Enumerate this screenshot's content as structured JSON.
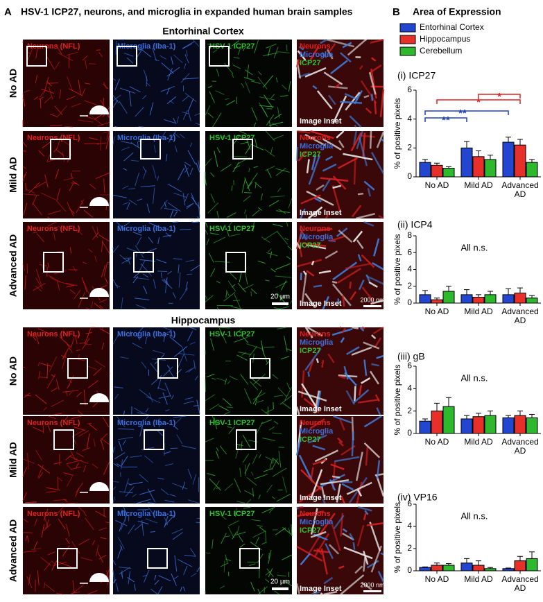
{
  "panel_a": {
    "label": "A",
    "title": "HSV-1 ICP27, neurons, and microglia in expanded human brain samples",
    "sections": [
      "Entorhinal Cortex",
      "Hippocampus"
    ],
    "rows": [
      "No AD",
      "Mild AD",
      "Advanced AD"
    ],
    "channels": [
      "Neurons (NFL)",
      "Microglia (Iba-1)",
      "HSV-1 ICP27"
    ],
    "inset_channels": [
      "Neurons",
      "Microglia",
      "ICP27"
    ],
    "inset_label": "Image Inset",
    "scale_bars": [
      "20 µm",
      "2000 nm"
    ]
  },
  "panel_b": {
    "label": "B",
    "legend_title": "Area of Expression"
  },
  "chart_data": [
    {
      "type": "bar",
      "title": "(i) ICP27",
      "ylabel": "% of positive pixels",
      "categories": [
        "No AD",
        "Mild AD",
        "Advanced AD"
      ],
      "ylim": [
        0,
        6
      ],
      "yticks": [
        0,
        2,
        4,
        6
      ],
      "series": [
        {
          "name": "Entorhinal Cortex",
          "color": "#2346d0",
          "values": [
            1.0,
            2.0,
            2.4
          ],
          "errors": [
            0.2,
            0.45,
            0.35
          ]
        },
        {
          "name": "Hippocampus",
          "color": "#e8302a",
          "values": [
            0.8,
            1.4,
            2.2
          ],
          "errors": [
            0.15,
            0.4,
            0.4
          ]
        },
        {
          "name": "Cerebellum",
          "color": "#2db82d",
          "values": [
            0.6,
            1.2,
            1.0
          ],
          "errors": [
            0.1,
            0.3,
            0.2
          ]
        }
      ],
      "annotations": [
        {
          "text": "**",
          "color": "#1f3fbf"
        },
        {
          "text": "**",
          "color": "#1f3fbf"
        },
        {
          "text": "*",
          "color": "#e02020"
        },
        {
          "text": "*",
          "color": "#e02020"
        }
      ]
    },
    {
      "type": "bar",
      "title": "(ii) ICP4",
      "ylabel": "% of positive pixels",
      "categories": [
        "No AD",
        "Mild AD",
        "Advanced AD"
      ],
      "ylim": [
        0,
        8
      ],
      "yticks": [
        0,
        2,
        4,
        6,
        8
      ],
      "series": [
        {
          "values": [
            1.0,
            1.0,
            1.0
          ],
          "errors": [
            0.5,
            0.6,
            0.7
          ]
        },
        {
          "values": [
            0.4,
            0.7,
            1.2
          ],
          "errors": [
            0.2,
            0.3,
            0.6
          ]
        },
        {
          "values": [
            1.4,
            1.0,
            0.6
          ],
          "errors": [
            0.6,
            0.4,
            0.3
          ]
        }
      ],
      "note": "All n.s."
    },
    {
      "type": "bar",
      "title": "(iii) gB",
      "ylabel": "% of positive pixels",
      "categories": [
        "No AD",
        "Mild AD",
        "Advanced AD"
      ],
      "ylim": [
        0,
        6
      ],
      "yticks": [
        0,
        2,
        4,
        6
      ],
      "series": [
        {
          "values": [
            1.1,
            1.3,
            1.4
          ],
          "errors": [
            0.2,
            0.3,
            0.2
          ]
        },
        {
          "values": [
            2.0,
            1.5,
            1.6
          ],
          "errors": [
            0.7,
            0.3,
            0.4
          ]
        },
        {
          "values": [
            2.4,
            1.6,
            1.4
          ],
          "errors": [
            0.8,
            0.4,
            0.3
          ]
        }
      ],
      "note": "All n.s."
    },
    {
      "type": "bar",
      "title": "(iv) VP16",
      "ylabel": "% of positive pixels",
      "categories": [
        "No AD",
        "Mild AD",
        "Advanced AD"
      ],
      "ylim": [
        0,
        6
      ],
      "yticks": [
        0,
        2,
        4,
        6
      ],
      "series": [
        {
          "values": [
            0.3,
            0.7,
            0.2
          ],
          "errors": [
            0.05,
            0.4,
            0.05
          ]
        },
        {
          "values": [
            0.5,
            0.5,
            0.9
          ],
          "errors": [
            0.2,
            0.4,
            0.4
          ]
        },
        {
          "values": [
            0.5,
            0.2,
            1.1
          ],
          "errors": [
            0.15,
            0.1,
            0.6
          ]
        }
      ],
      "note": "All n.s."
    }
  ]
}
